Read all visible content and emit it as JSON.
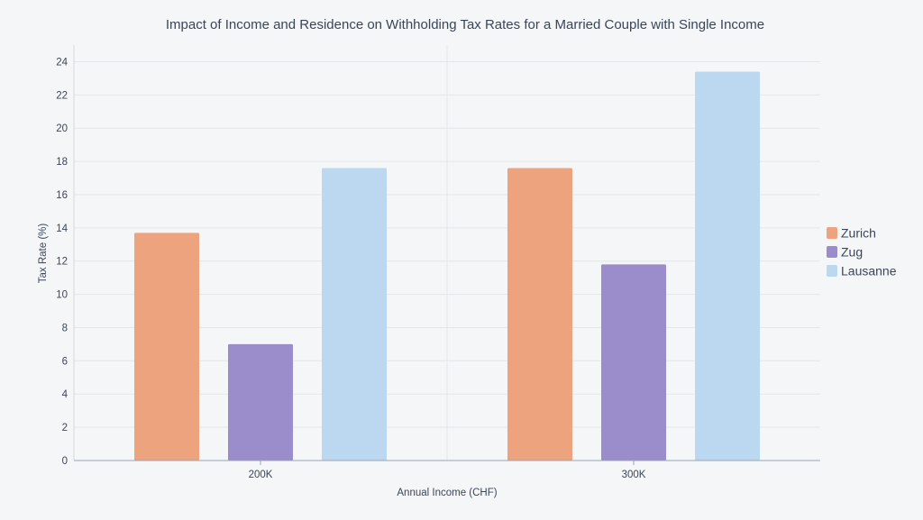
{
  "chart_data": {
    "type": "bar",
    "title": "Impact of Income and Residence on Withholding Tax Rates for a Married Couple with Single Income",
    "xlabel": "Annual Income (CHF)",
    "ylabel": "Tax Rate (%)",
    "categories": [
      "200K",
      "300K"
    ],
    "series": [
      {
        "name": "Zurich",
        "values": [
          13.7,
          17.6
        ],
        "color": "#eea37f"
      },
      {
        "name": "Zug",
        "values": [
          7.0,
          11.8
        ],
        "color": "#9b8ccb"
      },
      {
        "name": "Lausanne",
        "values": [
          17.6,
          23.4
        ],
        "color": "#bcd8f0"
      }
    ],
    "ylim": [
      0,
      25
    ],
    "yticks": [
      0,
      2,
      4,
      6,
      8,
      10,
      12,
      14,
      16,
      18,
      20,
      22,
      24
    ],
    "grid": true,
    "legend_position": "right"
  }
}
